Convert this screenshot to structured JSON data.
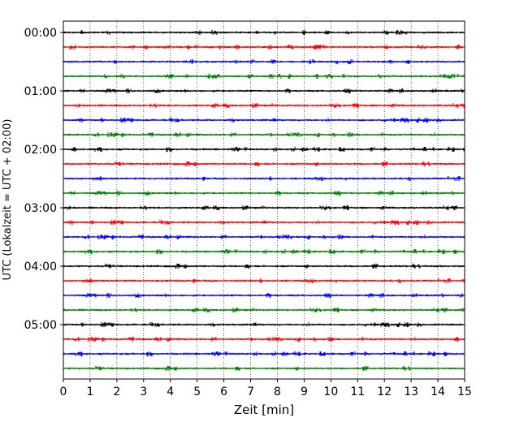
{
  "chart_data": {
    "type": "line",
    "title": "",
    "xlabel": "Zeit  [min]",
    "ylabel": "UTC (Lokalzeit = UTC + 02:00)",
    "xlim": [
      0,
      15
    ],
    "xticks": [
      0,
      1,
      2,
      3,
      4,
      5,
      6,
      7,
      8,
      9,
      10,
      11,
      12,
      13,
      14,
      15
    ],
    "yticks": [
      "00:00",
      "01:00",
      "02:00",
      "03:00",
      "04:00",
      "05:00"
    ],
    "grid": "vertical dotted",
    "trace_interval_min": 15,
    "trace_start_times": [
      "00:00",
      "00:15",
      "00:30",
      "00:45",
      "01:00",
      "01:15",
      "01:30",
      "01:45",
      "02:00",
      "02:15",
      "02:30",
      "02:45",
      "03:00",
      "03:15",
      "03:30",
      "03:45",
      "04:00",
      "04:15",
      "04:30",
      "04:45",
      "05:00",
      "05:15",
      "05:30",
      "05:45"
    ],
    "trace_color_cycle": [
      "#000000",
      "#ff0000",
      "#0000ff",
      "#008000"
    ]
  }
}
